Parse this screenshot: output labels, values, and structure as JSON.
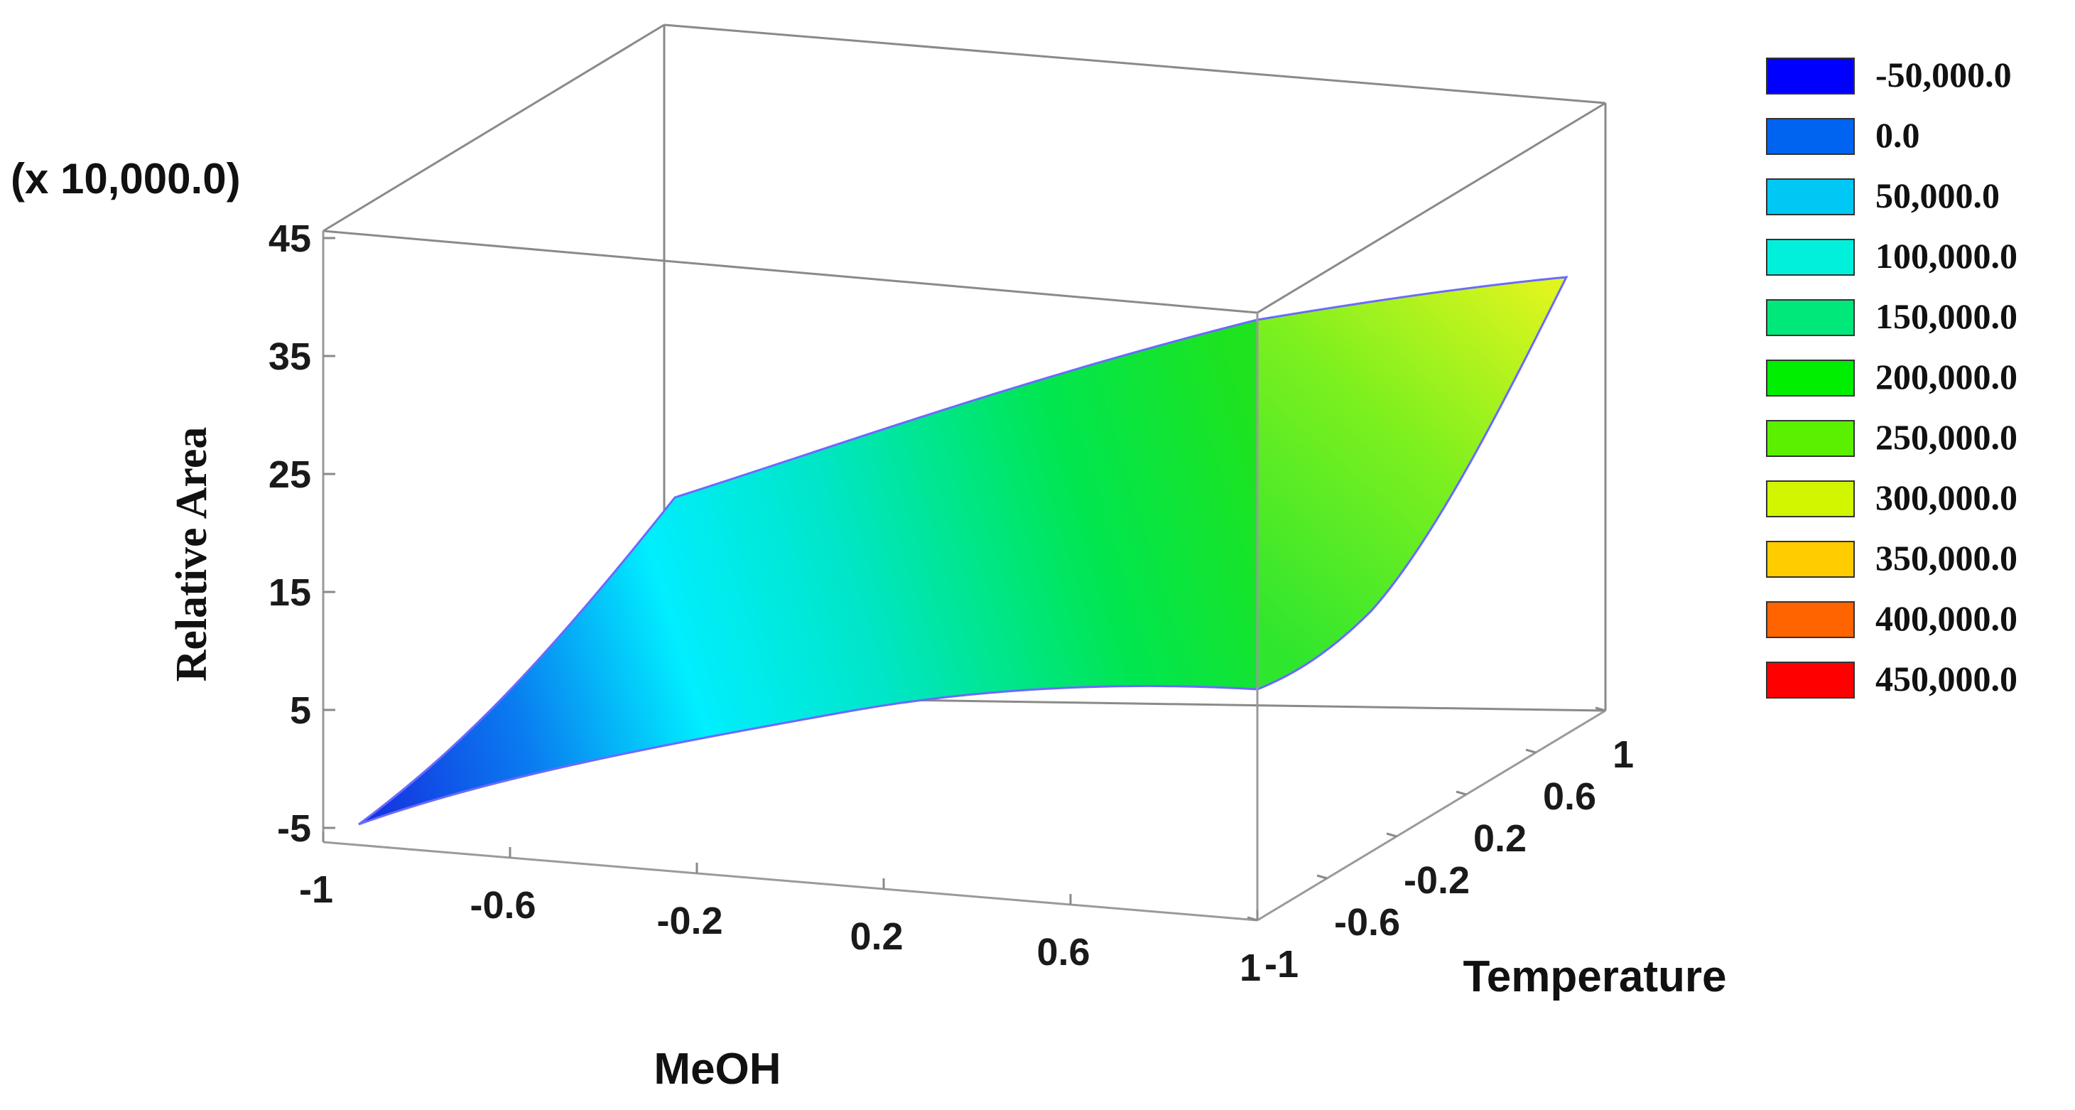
{
  "chart_data": {
    "type": "surface",
    "title": "",
    "xlabel": "MeOH",
    "ylabel": "Temperature",
    "zlabel": "Relative Area",
    "z_multiplier_label": "(x 10,000.0)",
    "x_ticks": [
      "-1",
      "-0.6",
      "-0.2",
      "0.2",
      "0.6",
      "1"
    ],
    "y_ticks": [
      "-1",
      "-0.6",
      "-0.2",
      "0.2",
      "0.6",
      "1"
    ],
    "z_ticks": [
      "-5",
      "5",
      "15",
      "25",
      "35",
      "45"
    ],
    "xlim": [
      -1,
      1
    ],
    "ylim": [
      -1,
      1
    ],
    "zlim": [
      -5,
      45
    ],
    "legend_position": "right",
    "legend": [
      {
        "label": "-50,000.0",
        "color": "#0000ff"
      },
      {
        "label": "0.0",
        "color": "#0064f0"
      },
      {
        "label": "50,000.0",
        "color": "#00c8f5"
      },
      {
        "label": "100,000.0",
        "color": "#00f0dc"
      },
      {
        "label": "150,000.0",
        "color": "#00e87a"
      },
      {
        "label": "200,000.0",
        "color": "#00ee00"
      },
      {
        "label": "250,000.0",
        "color": "#5af000"
      },
      {
        "label": "300,000.0",
        "color": "#d2f500"
      },
      {
        "label": "350,000.0",
        "color": "#ffcc00"
      },
      {
        "label": "400,000.0",
        "color": "#ff6400"
      },
      {
        "label": "450,000.0",
        "color": "#ff0000"
      }
    ],
    "surface_edges": {
      "y_at_min_edge": {
        "x": [
          -1,
          -0.6,
          -0.2,
          0.2,
          0.6,
          1
        ],
        "z": [
          -4.5,
          1.5,
          5.0,
          7.5,
          9.0,
          9.0
        ]
      },
      "y_at_max_edge": {
        "y": [
          -1,
          -0.6,
          -0.2,
          0.2,
          0.6,
          1
        ],
        "z": [
          9.0,
          10.5,
          14.0,
          19.5,
          28.0,
          40.0
        ]
      },
      "x_at_min_edge": {
        "y": [
          -1,
          -0.6,
          -0.2,
          0.2,
          0.6,
          1
        ],
        "z": [
          -4.5,
          -1.5,
          4.0,
          12.0,
          20.0,
          26.0
        ]
      },
      "x_at_max_edge": {
        "x": [
          -1,
          -0.6,
          -0.2,
          0.2,
          0.6,
          1
        ],
        "z": [
          26.0,
          30.0,
          33.5,
          36.5,
          38.5,
          40.0
        ]
      }
    }
  }
}
